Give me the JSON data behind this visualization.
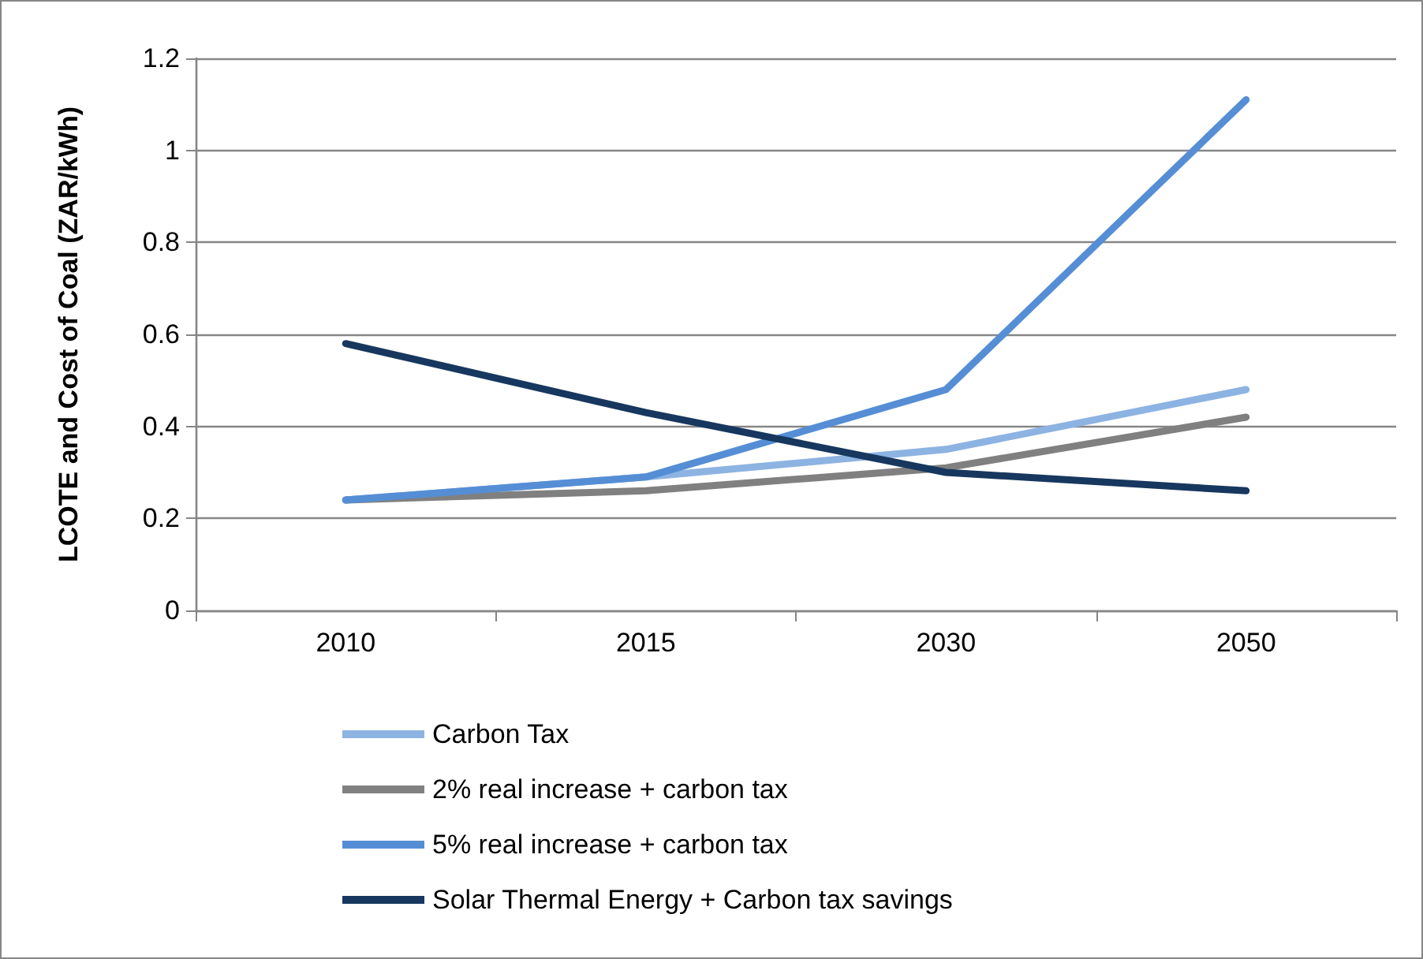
{
  "chart_data": {
    "type": "line",
    "ylabel": "LCOTE and Cost of Coal (ZAR/kWh)",
    "categories": [
      "2010",
      "2015",
      "2030",
      "2050"
    ],
    "series": [
      {
        "name": "Carbon Tax",
        "color": "#8db3e2",
        "values": [
          0.24,
          0.29,
          0.35,
          0.48
        ]
      },
      {
        "name": "2% real increase + carbon tax",
        "color": "#808080",
        "values": [
          0.24,
          0.26,
          0.31,
          0.42
        ]
      },
      {
        "name": "5% real increase + carbon tax",
        "color": "#558ed5",
        "values": [
          0.24,
          0.29,
          0.48,
          1.11
        ]
      },
      {
        "name": "Solar Thermal Energy + Carbon tax savings",
        "color": "#17375e",
        "values": [
          0.58,
          0.43,
          0.3,
          0.26
        ]
      }
    ],
    "ylim": [
      0,
      1.2
    ],
    "yticks": [
      0,
      0.2,
      0.4,
      0.6,
      0.8,
      1,
      1.2
    ],
    "grid": "y",
    "legend": "bottom",
    "marker": "none",
    "line_style": "solid"
  }
}
